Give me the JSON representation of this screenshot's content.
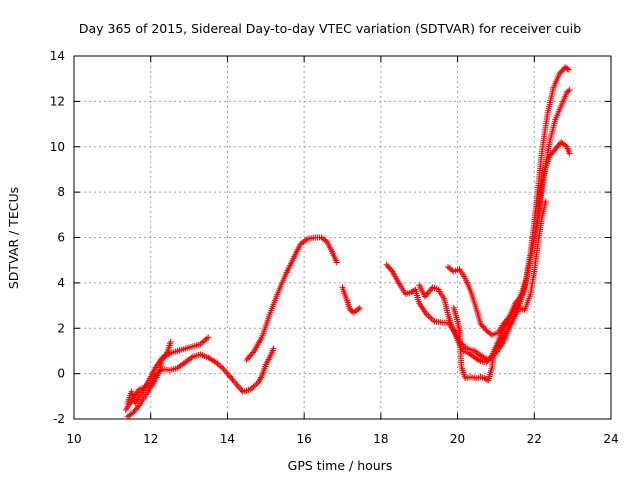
{
  "chart_data": {
    "type": "scatter",
    "title": "Day 365 of 2015, Sidereal Day-to-day VTEC variation (SDTVAR) for receiver cuib",
    "xlabel": "GPS time / hours",
    "ylabel": "SDTVAR / TECUs",
    "xlim": [
      10,
      24
    ],
    "ylim": [
      -2,
      14
    ],
    "xticks": [
      10,
      12,
      14,
      16,
      18,
      20,
      22,
      24
    ],
    "yticks": [
      -2,
      0,
      2,
      4,
      6,
      8,
      10,
      12,
      14
    ],
    "grid": true,
    "marker": "plus",
    "color": "#ff0000",
    "series": [
      {
        "name": "track-1",
        "points": [
          [
            11.35,
            -1.6
          ],
          [
            11.5,
            -1.2
          ],
          [
            11.7,
            -0.7
          ],
          [
            11.85,
            -0.6
          ],
          [
            11.95,
            -0.3
          ],
          [
            12.1,
            0.2
          ],
          [
            12.3,
            0.7
          ],
          [
            12.5,
            0.9
          ],
          [
            12.7,
            1.0
          ],
          [
            12.9,
            1.1
          ],
          [
            13.1,
            1.2
          ],
          [
            13.3,
            1.3
          ],
          [
            13.5,
            1.6
          ]
        ]
      },
      {
        "name": "track-2",
        "points": [
          [
            11.4,
            -1.9
          ],
          [
            11.55,
            -1.7
          ],
          [
            11.7,
            -1.4
          ],
          [
            11.85,
            -1.0
          ],
          [
            12.0,
            -0.6
          ],
          [
            12.1,
            -0.1
          ],
          [
            12.3,
            0.2
          ],
          [
            12.5,
            0.15
          ],
          [
            12.7,
            0.25
          ],
          [
            12.9,
            0.5
          ],
          [
            13.1,
            0.75
          ],
          [
            13.3,
            0.85
          ],
          [
            13.5,
            0.7
          ],
          [
            13.7,
            0.5
          ],
          [
            13.9,
            0.2
          ],
          [
            14.1,
            -0.2
          ],
          [
            14.3,
            -0.6
          ],
          [
            14.4,
            -0.8
          ],
          [
            14.6,
            -0.7
          ],
          [
            14.8,
            -0.4
          ],
          [
            14.9,
            -0.1
          ],
          [
            15.0,
            0.4
          ],
          [
            15.1,
            0.7
          ],
          [
            15.2,
            1.1
          ]
        ]
      },
      {
        "name": "track-3",
        "points": [
          [
            11.4,
            -1.3
          ],
          [
            11.5,
            -0.8
          ],
          [
            11.6,
            -1.3
          ],
          [
            11.75,
            -0.9
          ],
          [
            11.9,
            -0.5
          ],
          [
            12.05,
            -0.5
          ],
          [
            12.2,
            0.0
          ],
          [
            12.3,
            0.6
          ],
          [
            12.45,
            1.0
          ],
          [
            12.52,
            1.4
          ]
        ]
      },
      {
        "name": "track-4",
        "points": [
          [
            14.5,
            0.6
          ],
          [
            14.7,
            1.0
          ],
          [
            14.9,
            1.6
          ],
          [
            15.1,
            2.6
          ],
          [
            15.3,
            3.5
          ],
          [
            15.5,
            4.3
          ],
          [
            15.7,
            5.0
          ],
          [
            15.9,
            5.7
          ],
          [
            16.1,
            5.95
          ],
          [
            16.3,
            6.0
          ],
          [
            16.45,
            6.0
          ],
          [
            16.6,
            5.8
          ],
          [
            16.75,
            5.3
          ],
          [
            16.85,
            4.9
          ]
        ]
      },
      {
        "name": "track-5",
        "points": [
          [
            17.0,
            3.8
          ],
          [
            17.1,
            3.3
          ],
          [
            17.2,
            2.8
          ],
          [
            17.3,
            2.7
          ],
          [
            17.45,
            2.9
          ]
        ]
      },
      {
        "name": "track-6",
        "points": [
          [
            18.15,
            4.8
          ],
          [
            18.3,
            4.5
          ],
          [
            18.5,
            3.9
          ],
          [
            18.65,
            3.5
          ],
          [
            18.8,
            3.6
          ],
          [
            18.9,
            3.7
          ],
          [
            19.0,
            3.1
          ],
          [
            19.2,
            2.6
          ],
          [
            19.4,
            2.3
          ],
          [
            19.6,
            2.25
          ],
          [
            19.75,
            2.25
          ],
          [
            19.9,
            1.9
          ],
          [
            20.05,
            1.4
          ],
          [
            20.25,
            1.1
          ],
          [
            20.45,
            1.0
          ],
          [
            20.6,
            0.8
          ],
          [
            20.8,
            0.6
          ],
          [
            21.0,
            0.9
          ],
          [
            21.2,
            1.4
          ],
          [
            21.4,
            2.2
          ],
          [
            21.6,
            2.9
          ],
          [
            21.75,
            3.8
          ],
          [
            21.9,
            5.3
          ],
          [
            22.0,
            6.7
          ],
          [
            22.1,
            8.2
          ],
          [
            22.2,
            9.8
          ],
          [
            22.35,
            11.5
          ],
          [
            22.5,
            12.6
          ],
          [
            22.65,
            13.2
          ],
          [
            22.8,
            13.5
          ],
          [
            22.9,
            13.4
          ]
        ]
      },
      {
        "name": "track-7",
        "points": [
          [
            19.0,
            3.9
          ],
          [
            19.15,
            3.4
          ],
          [
            19.35,
            3.8
          ],
          [
            19.5,
            3.7
          ],
          [
            19.65,
            3.3
          ],
          [
            19.75,
            2.6
          ],
          [
            19.85,
            2.1
          ],
          [
            19.95,
            1.7
          ],
          [
            20.05,
            1.3
          ],
          [
            20.15,
            1.0
          ],
          [
            20.3,
            0.9
          ],
          [
            20.45,
            0.7
          ],
          [
            20.6,
            0.55
          ],
          [
            20.75,
            0.5
          ],
          [
            20.9,
            0.8
          ],
          [
            21.05,
            1.4
          ],
          [
            21.2,
            2.0
          ],
          [
            21.4,
            2.6
          ],
          [
            21.6,
            3.2
          ],
          [
            21.8,
            4.2
          ],
          [
            21.95,
            5.5
          ],
          [
            22.05,
            6.5
          ],
          [
            22.15,
            7.8
          ],
          [
            22.3,
            9.1
          ],
          [
            22.4,
            9.6
          ],
          [
            22.55,
            9.9
          ],
          [
            22.7,
            10.2
          ],
          [
            22.85,
            10.0
          ],
          [
            22.92,
            9.7
          ]
        ]
      },
      {
        "name": "track-8",
        "points": [
          [
            19.75,
            4.7
          ],
          [
            19.9,
            4.5
          ],
          [
            20.05,
            4.6
          ],
          [
            20.2,
            4.2
          ],
          [
            20.35,
            3.6
          ],
          [
            20.5,
            2.8
          ],
          [
            20.6,
            2.2
          ],
          [
            20.75,
            1.9
          ],
          [
            20.9,
            1.7
          ],
          [
            21.05,
            1.8
          ],
          [
            21.2,
            2.2
          ],
          [
            21.35,
            2.5
          ],
          [
            21.5,
            3.1
          ],
          [
            21.7,
            3.5
          ],
          [
            21.8,
            4.2
          ],
          [
            21.95,
            5.5
          ],
          [
            22.1,
            6.9
          ],
          [
            22.25,
            8.8
          ],
          [
            22.4,
            10.2
          ],
          [
            22.55,
            11.2
          ],
          [
            22.7,
            11.8
          ],
          [
            22.85,
            12.4
          ],
          [
            22.92,
            12.5
          ]
        ]
      },
      {
        "name": "track-9",
        "points": [
          [
            19.9,
            2.9
          ],
          [
            20.0,
            2.3
          ],
          [
            20.05,
            1.9
          ],
          [
            20.1,
            0.3
          ],
          [
            20.2,
            -0.2
          ],
          [
            20.35,
            -0.15
          ],
          [
            20.5,
            -0.2
          ],
          [
            20.6,
            -0.15
          ],
          [
            20.7,
            -0.2
          ],
          [
            20.8,
            -0.3
          ],
          [
            20.9,
            0.3
          ],
          [
            20.95,
            0.9
          ],
          [
            21.05,
            1.3
          ],
          [
            21.2,
            1.6
          ],
          [
            21.35,
            2.1
          ],
          [
            21.5,
            2.6
          ],
          [
            21.6,
            2.9
          ],
          [
            21.75,
            2.8
          ],
          [
            21.9,
            3.5
          ],
          [
            22.0,
            4.5
          ],
          [
            22.1,
            5.8
          ],
          [
            22.2,
            6.9
          ],
          [
            22.3,
            7.6
          ]
        ]
      }
    ]
  }
}
